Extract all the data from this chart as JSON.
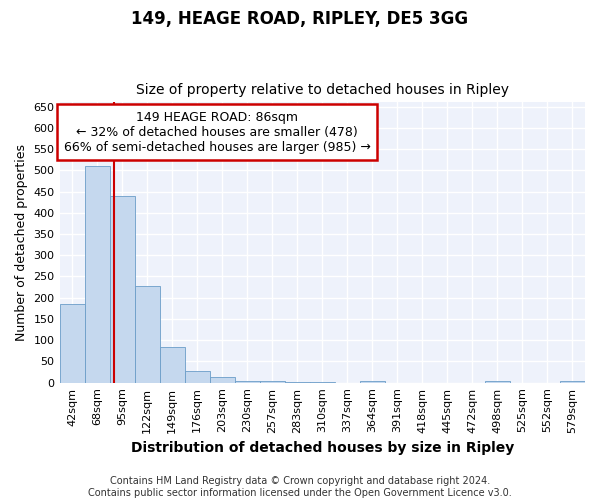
{
  "title1": "149, HEAGE ROAD, RIPLEY, DE5 3GG",
  "title2": "Size of property relative to detached houses in Ripley",
  "xlabel": "Distribution of detached houses by size in Ripley",
  "ylabel": "Number of detached properties",
  "categories": [
    "42sqm",
    "68sqm",
    "95sqm",
    "122sqm",
    "149sqm",
    "176sqm",
    "203sqm",
    "230sqm",
    "257sqm",
    "283sqm",
    "310sqm",
    "337sqm",
    "364sqm",
    "391sqm",
    "418sqm",
    "445sqm",
    "472sqm",
    "498sqm",
    "525sqm",
    "552sqm",
    "579sqm"
  ],
  "values": [
    185,
    510,
    440,
    228,
    83,
    28,
    13,
    5,
    5,
    2,
    2,
    0,
    5,
    0,
    0,
    0,
    0,
    5,
    0,
    0,
    5
  ],
  "bar_color": "#c5d8ee",
  "bar_edge_color": "#6b9dc8",
  "bar_width": 1.0,
  "ylim": [
    0,
    660
  ],
  "yticks": [
    0,
    50,
    100,
    150,
    200,
    250,
    300,
    350,
    400,
    450,
    500,
    550,
    600,
    650
  ],
  "vline_x": 1.67,
  "vline_color": "#cc0000",
  "annotation_text": "149 HEAGE ROAD: 86sqm\n← 32% of detached houses are smaller (478)\n66% of semi-detached houses are larger (985) →",
  "annotation_box_color": "#cc0000",
  "footer": "Contains HM Land Registry data © Crown copyright and database right 2024.\nContains public sector information licensed under the Open Government Licence v3.0.",
  "bg_color": "#eef2fb",
  "grid_color": "#ffffff",
  "title1_fontsize": 12,
  "title2_fontsize": 10,
  "axis_label_fontsize": 9,
  "tick_fontsize": 8,
  "annotation_fontsize": 9,
  "footer_fontsize": 7
}
